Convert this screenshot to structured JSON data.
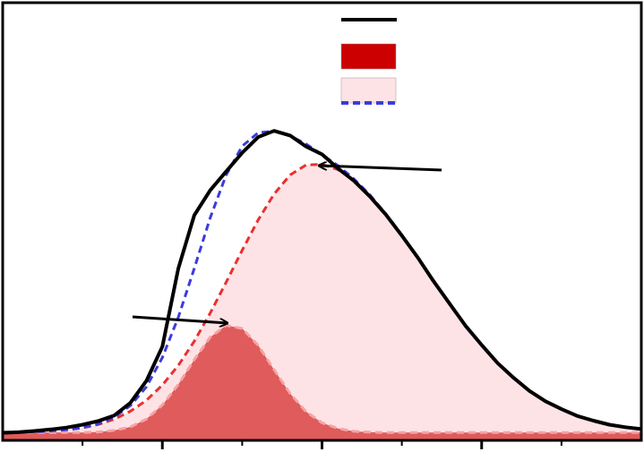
{
  "chart_data": {
    "type": "line",
    "x": [
      0,
      0.1,
      0.2,
      0.3,
      0.4,
      0.5,
      0.6,
      0.7,
      0.8,
      0.9,
      1,
      1.1,
      1.2,
      1.3,
      1.4,
      1.5,
      1.6,
      1.7,
      1.8,
      1.9,
      2,
      2.1,
      2.2,
      2.3,
      2.4,
      2.5,
      2.6,
      2.7,
      2.8,
      2.9,
      3,
      3.1,
      3.2,
      3.3,
      3.4,
      3.5,
      3.6,
      3.7,
      3.8,
      3.9,
      4
    ],
    "xlim": [
      0,
      4
    ],
    "xticks": [
      1,
      2,
      3
    ],
    "xminor": [
      0.5,
      1.5,
      2.5,
      3.5
    ],
    "ylim": [
      0,
      1.4
    ],
    "series": [
      {
        "kind": "line",
        "color": "#000000",
        "dashed": false,
        "values": [
          0.024,
          0.026,
          0.03,
          0.035,
          0.041,
          0.05,
          0.062,
          0.08,
          0.12,
          0.19,
          0.3,
          0.55,
          0.72,
          0.8,
          0.86,
          0.92,
          0.97,
          0.99,
          0.975,
          0.94,
          0.915,
          0.87,
          0.83,
          0.78,
          0.722,
          0.655,
          0.585,
          0.508,
          0.437,
          0.366,
          0.305,
          0.247,
          0.2,
          0.158,
          0.125,
          0.1,
          0.078,
          0.063,
          0.05,
          0.042,
          0.036
        ]
      },
      {
        "kind": "area",
        "color": "#cc0000",
        "edge_color": "#f6a3a3",
        "dashed": true,
        "values": [
          0.025,
          0.025,
          0.025,
          0.025,
          0.025,
          0.025,
          0.027,
          0.032,
          0.043,
          0.068,
          0.113,
          0.179,
          0.258,
          0.33,
          0.368,
          0.358,
          0.304,
          0.226,
          0.15,
          0.092,
          0.056,
          0.038,
          0.029,
          0.026,
          0.025,
          0.025,
          0.025,
          0.025,
          0.025,
          0.025,
          0.025,
          0.025,
          0.025,
          0.025,
          0.025,
          0.025,
          0.025,
          0.025,
          0.025,
          0.025,
          0.025
        ]
      },
      {
        "kind": "area",
        "color": "#fde3e5",
        "edge_color": "#e83030",
        "dashed": true,
        "values": [
          0.026,
          0.026,
          0.027,
          0.03,
          0.034,
          0.04,
          0.051,
          0.068,
          0.093,
          0.128,
          0.177,
          0.24,
          0.317,
          0.407,
          0.506,
          0.608,
          0.705,
          0.788,
          0.849,
          0.881,
          0.883,
          0.866,
          0.832,
          0.784,
          0.724,
          0.657,
          0.584,
          0.51,
          0.437,
          0.367,
          0.304,
          0.248,
          0.2,
          0.159,
          0.126,
          0.099,
          0.079,
          0.063,
          0.051,
          0.043,
          0.037
        ]
      },
      {
        "kind": "line",
        "color": "#3b3bdd",
        "dashed": true,
        "values": [
          0.026,
          0.026,
          0.027,
          0.03,
          0.034,
          0.04,
          0.053,
          0.075,
          0.111,
          0.171,
          0.265,
          0.394,
          0.55,
          0.712,
          0.849,
          0.941,
          0.984,
          0.989,
          0.974,
          0.948,
          0.914,
          0.879,
          0.836,
          0.785,
          0.724,
          0.657,
          0.584,
          0.51,
          0.437,
          0.367,
          0.304,
          0.248,
          0.2,
          0.159,
          0.126,
          0.099,
          0.079,
          0.063,
          0.051,
          0.043,
          0.037
        ]
      }
    ]
  }
}
